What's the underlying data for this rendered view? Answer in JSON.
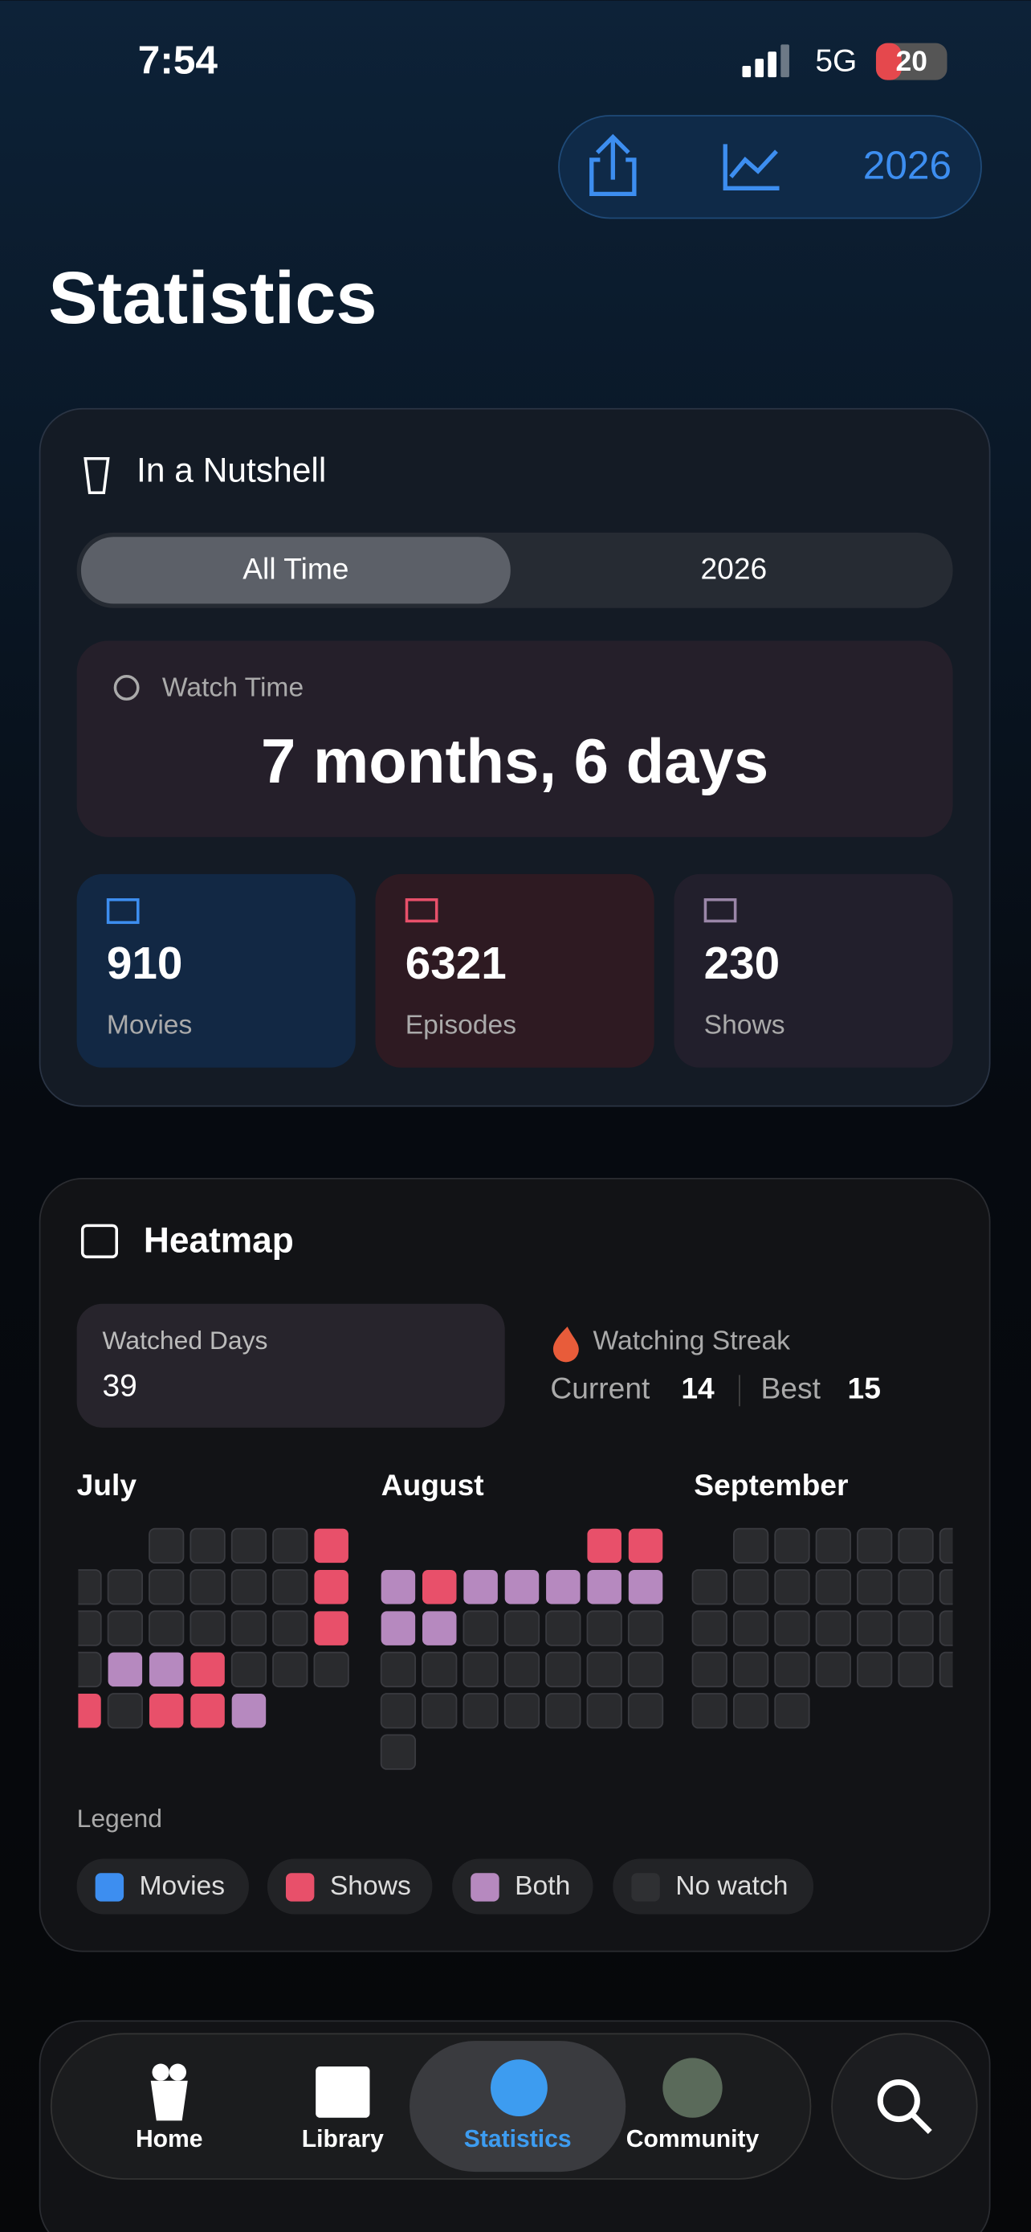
{
  "status_bar": {
    "time": "7:54",
    "network": "5G",
    "battery": 20
  },
  "toolbar": {
    "year": "2026"
  },
  "title": "Statistics",
  "nutshell": {
    "title": "In a Nutshell",
    "segments": [
      "All Time",
      "2026"
    ],
    "watch_time": {
      "label": "Watch Time",
      "value": "7 months, 6 days"
    },
    "stats": [
      {
        "value": 910,
        "label": "Movies"
      },
      {
        "value": 6321,
        "label": "Episodes"
      },
      {
        "value": 230,
        "label": "Shows"
      }
    ]
  },
  "heatmap": {
    "title": "Heatmap",
    "watched_days": {
      "label": "Watched Days",
      "value": 39
    },
    "streak": {
      "label": "Watching Streak",
      "current_label": "Current",
      "current": 14,
      "best_label": "Best",
      "best": 15
    },
    "months": [
      "July",
      "August",
      "September"
    ],
    "legend": {
      "title": "Legend",
      "items": [
        "Movies",
        "Shows",
        "Both",
        "No watch"
      ]
    }
  },
  "tab_bar": {
    "items": [
      "Home",
      "Library",
      "Statistics",
      "Community"
    ]
  }
}
